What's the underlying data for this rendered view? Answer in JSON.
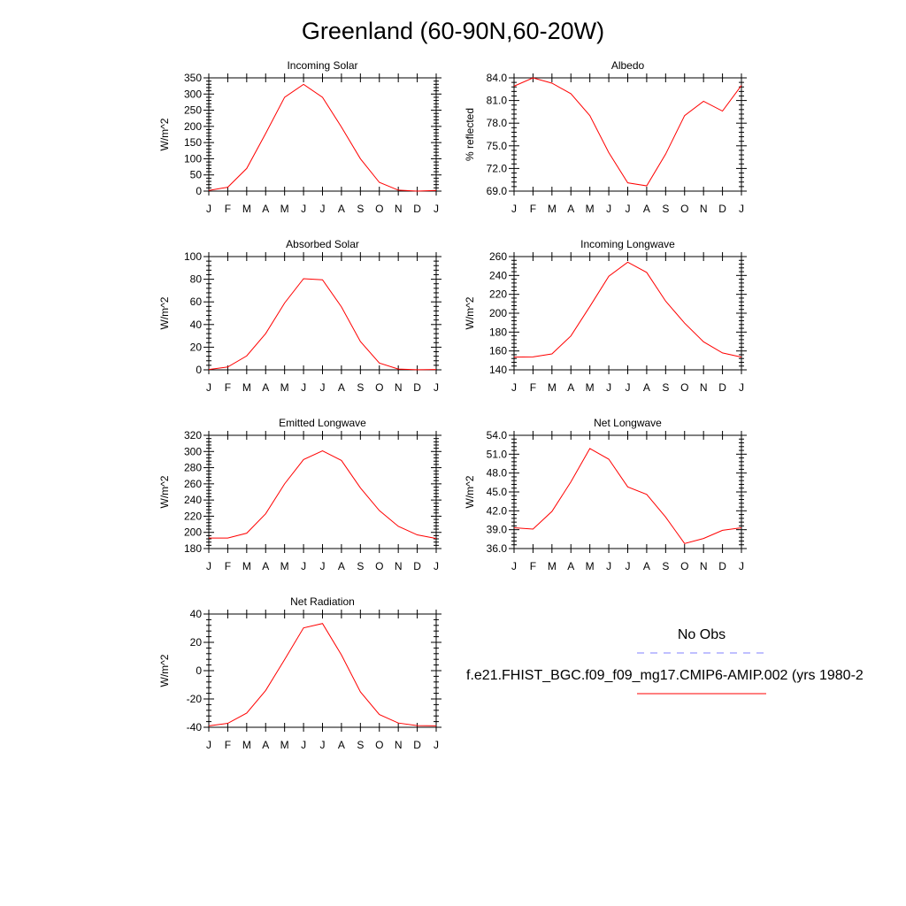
{
  "title": "Greenland (60-90N,60-20W)",
  "months": [
    "J",
    "F",
    "M",
    "A",
    "M",
    "J",
    "J",
    "A",
    "S",
    "O",
    "N",
    "D",
    "J"
  ],
  "colors": {
    "model": "#ff0000",
    "obs": "#8080ff",
    "axis": "#000000"
  },
  "legend": {
    "obs_label": "No Obs",
    "model_label": "f.e21.FHIST_BGC.f09_f09_mg17.CMIP6-AMIP.002 (yrs 1980-2"
  },
  "chart_data": [
    {
      "type": "line",
      "title": "Incoming Solar",
      "ylabel": "W/m^2",
      "ylim": [
        0,
        350
      ],
      "yticks": [
        0,
        50,
        100,
        150,
        200,
        250,
        300,
        350
      ],
      "ytick_labels": [
        "0",
        "50",
        "100",
        "150",
        "200",
        "250",
        "300",
        "350"
      ],
      "series": [
        {
          "values": [
            2,
            12,
            70,
            178,
            290,
            330,
            290,
            198,
            100,
            27,
            3,
            0,
            2
          ]
        }
      ]
    },
    {
      "type": "line",
      "title": "Albedo",
      "ylabel": "% reflected",
      "ylim": [
        69,
        84
      ],
      "yticks": [
        69,
        72,
        75,
        78,
        81,
        84
      ],
      "ytick_labels": [
        "69.0",
        "72.0",
        "75.0",
        "78.0",
        "81.0",
        "84.0"
      ],
      "series": [
        {
          "values": [
            82.9,
            84.0,
            83.3,
            81.9,
            79.0,
            74.1,
            70.1,
            69.7,
            73.9,
            79.0,
            80.9,
            79.6,
            83.0
          ]
        }
      ]
    },
    {
      "type": "line",
      "title": "Absorbed Solar",
      "ylabel": "W/m^2",
      "ylim": [
        0,
        100
      ],
      "yticks": [
        0,
        20,
        40,
        60,
        80,
        100
      ],
      "ytick_labels": [
        "0",
        "20",
        "40",
        "60",
        "80",
        "100"
      ],
      "series": [
        {
          "values": [
            0.3,
            2.5,
            12.3,
            32,
            59,
            80.5,
            79.5,
            55.6,
            25,
            6,
            0.7,
            0.1,
            0.3
          ]
        }
      ]
    },
    {
      "type": "line",
      "title": "Incoming Longwave",
      "ylabel": "W/m^2",
      "ylim": [
        140,
        260
      ],
      "yticks": [
        140,
        160,
        180,
        200,
        220,
        240,
        260
      ],
      "ytick_labels": [
        "140",
        "160",
        "180",
        "200",
        "220",
        "240",
        "260"
      ],
      "series": [
        {
          "values": [
            153.5,
            153.7,
            156.9,
            175.9,
            207.1,
            239.2,
            254.1,
            243.2,
            212.8,
            189.5,
            169.7,
            157.9,
            153.5
          ]
        }
      ]
    },
    {
      "type": "line",
      "title": "Emitted Longwave",
      "ylabel": "W/m^2",
      "ylim": [
        180,
        320
      ],
      "yticks": [
        180,
        200,
        220,
        240,
        260,
        280,
        300,
        320
      ],
      "ytick_labels": [
        "180",
        "200",
        "220",
        "240",
        "260",
        "280",
        "300",
        "320"
      ],
      "series": [
        {
          "values": [
            193,
            193,
            199,
            223,
            260,
            290,
            300.8,
            288.9,
            255,
            227,
            207.5,
            196.9,
            192.5
          ]
        }
      ]
    },
    {
      "type": "line",
      "title": "Net Longwave",
      "ylabel": "W/m^2",
      "ylim": [
        36,
        54
      ],
      "yticks": [
        36,
        39,
        42,
        45,
        48,
        51,
        54
      ],
      "ytick_labels": [
        "36.0",
        "39.0",
        "42.0",
        "45.0",
        "48.0",
        "51.0",
        "54.0"
      ],
      "series": [
        {
          "values": [
            39.3,
            39.1,
            41.9,
            46.6,
            51.9,
            50.2,
            45.8,
            44.6,
            41.0,
            36.8,
            37.6,
            38.9,
            39.3
          ]
        }
      ]
    },
    {
      "type": "line",
      "title": "Net Radiation",
      "ylabel": "W/m^2",
      "ylim": [
        -40,
        40
      ],
      "yticks": [
        -40,
        -20,
        0,
        20,
        40
      ],
      "ytick_labels": [
        "-40",
        "-20",
        "0",
        "20",
        "40"
      ],
      "series": [
        {
          "values": [
            -39,
            -37.2,
            -30,
            -14,
            7.8,
            30.2,
            33.3,
            11.1,
            -15,
            -31,
            -37,
            -38.8,
            -39
          ]
        }
      ]
    }
  ]
}
